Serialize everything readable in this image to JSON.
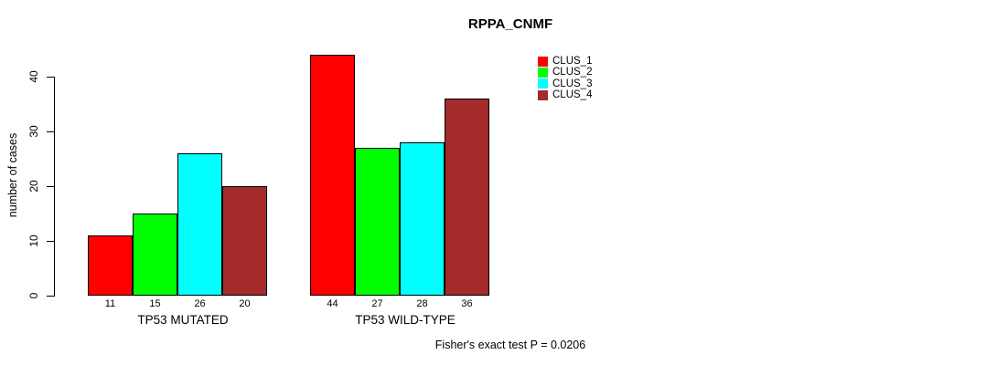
{
  "chart_data": {
    "type": "bar",
    "title": "RPPA_CNMF",
    "ylabel": "number of cases",
    "xlabel": "",
    "categories": [
      "TP53 MUTATED",
      "TP53 WILD-TYPE"
    ],
    "series": [
      {
        "name": "CLUS_1",
        "color": "#FF0000",
        "values": [
          11,
          44
        ]
      },
      {
        "name": "CLUS_2",
        "color": "#00FF00",
        "values": [
          15,
          27
        ]
      },
      {
        "name": "CLUS_3",
        "color": "#00FFFF",
        "values": [
          26,
          28
        ]
      },
      {
        "name": "CLUS_4",
        "color": "#A52A2A",
        "values": [
          20,
          36
        ]
      }
    ],
    "yticks": [
      0,
      10,
      20,
      30,
      40
    ],
    "ylim": [
      0,
      44
    ],
    "bar_value_labels": true,
    "grid": false,
    "legend_position": "top-right",
    "annotation": "Fisher's exact test P = 0.0206"
  }
}
